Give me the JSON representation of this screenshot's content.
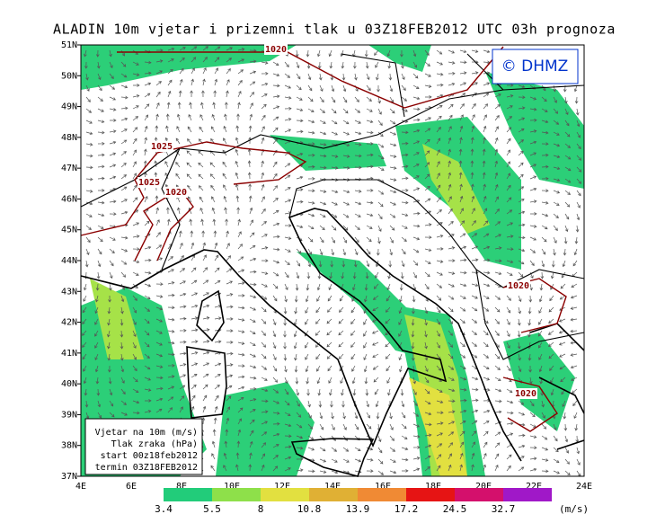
{
  "header": {
    "title": "ALADIN 10m vjetar i prizemni tlak u 03Z18FEB2012 UTC 03h prognoza",
    "logo": "© DHMZ"
  },
  "map": {
    "lat_labels": [
      "51N",
      "50N",
      "49N",
      "48N",
      "47N",
      "46N",
      "45N",
      "44N",
      "43N",
      "42N",
      "41N",
      "40N",
      "39N",
      "38N",
      "37N"
    ],
    "lon_labels": [
      "4E",
      "6E",
      "8E",
      "10E",
      "12E",
      "14E",
      "16E",
      "18E",
      "20E",
      "22E",
      "24E"
    ],
    "isobar_labels": [
      "1020",
      "1025",
      "1025",
      "1020",
      "1020",
      "1020"
    ]
  },
  "info_box": {
    "lines": [
      "Vjetar na 10m (m/s)",
      "Tlak zraka (hPa)",
      "start 00z18feb2012",
      "termin 03Z18FEB2012"
    ]
  },
  "colorbar": {
    "levels": [
      3.4,
      5.5,
      8,
      10.8,
      13.9,
      17.2,
      24.5,
      32.7
    ],
    "colors": [
      "#22cc7a",
      "#8ee04a",
      "#e2e040",
      "#e0b034",
      "#f08a34",
      "#e61414",
      "#d4106c",
      "#a018c8"
    ],
    "unit": "(m/s)"
  }
}
